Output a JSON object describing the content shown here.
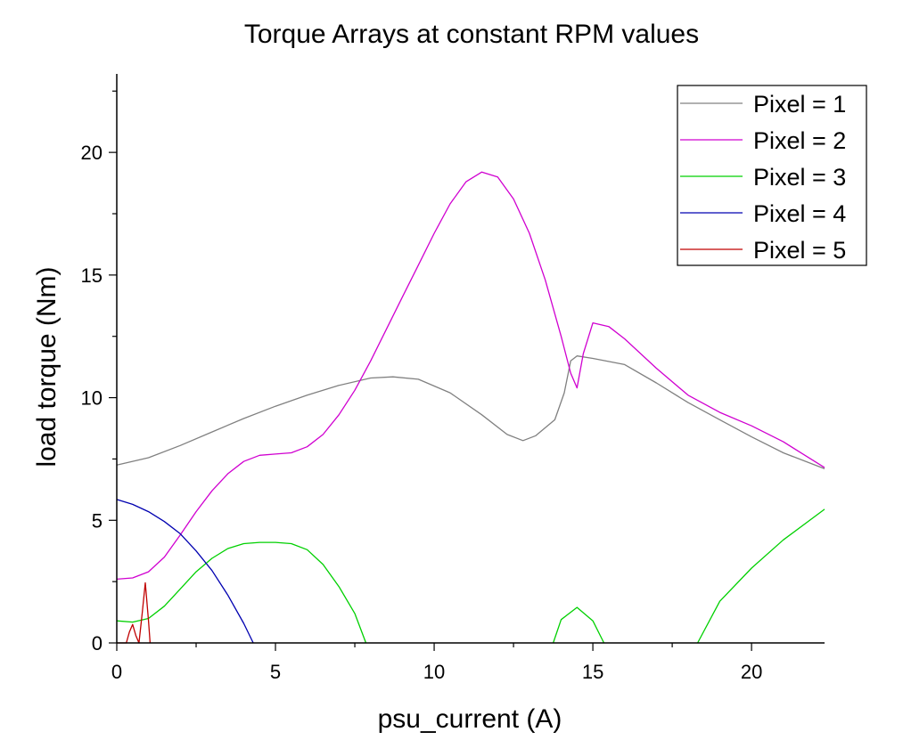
{
  "chart_data": {
    "type": "line",
    "title": "Torque Arrays at constant RPM values",
    "xlabel": "psu_current (A)",
    "ylabel": "load torque (Nm)",
    "xlim": [
      0,
      22.3
    ],
    "ylim": [
      0,
      23.2
    ],
    "xticks": [
      0,
      5,
      10,
      15,
      20
    ],
    "yticks": [
      0,
      5,
      10,
      15,
      20
    ],
    "grid": false,
    "legend_position": "top-right",
    "series": [
      {
        "name": "Pixel = 1",
        "color": "#808080",
        "x": [
          0,
          1,
          2,
          3,
          4,
          5,
          6,
          7,
          8,
          8.7,
          9.5,
          10.5,
          11.5,
          12.3,
          12.8,
          13.2,
          13.8,
          14.1,
          14.3,
          14.5,
          15,
          16,
          17,
          18,
          19,
          20,
          21,
          22.3
        ],
        "y": [
          7.25,
          7.55,
          8.05,
          8.6,
          9.15,
          9.65,
          10.1,
          10.5,
          10.8,
          10.85,
          10.75,
          10.2,
          9.3,
          8.5,
          8.25,
          8.45,
          9.1,
          10.2,
          11.5,
          11.7,
          11.6,
          11.35,
          10.6,
          9.8,
          9.1,
          8.4,
          7.75,
          7.1
        ]
      },
      {
        "name": "Pixel = 2",
        "color": "#d000d0",
        "x": [
          0,
          0.5,
          1,
          1.5,
          2,
          2.5,
          3,
          3.5,
          4,
          4.5,
          5,
          5.5,
          6,
          6.5,
          7,
          7.5,
          8,
          8.5,
          9,
          9.5,
          10,
          10.5,
          11,
          11.5,
          12,
          12.5,
          13,
          13.5,
          14,
          14.3,
          14.5,
          14.7,
          15,
          15.5,
          16,
          17,
          18,
          19,
          20,
          21,
          22.3
        ],
        "y": [
          2.6,
          2.65,
          2.9,
          3.5,
          4.4,
          5.35,
          6.2,
          6.9,
          7.4,
          7.65,
          7.7,
          7.75,
          8.0,
          8.5,
          9.3,
          10.3,
          11.5,
          12.8,
          14.1,
          15.4,
          16.7,
          17.9,
          18.8,
          19.2,
          19.0,
          18.1,
          16.7,
          14.8,
          12.5,
          11.0,
          10.4,
          11.8,
          13.05,
          12.9,
          12.4,
          11.2,
          10.1,
          9.4,
          8.85,
          8.2,
          7.15
        ]
      },
      {
        "name": "Pixel = 3",
        "color": "#00d000",
        "x": [
          0,
          0.5,
          1,
          1.5,
          2,
          2.5,
          3,
          3.5,
          4,
          4.5,
          5,
          5.5,
          6,
          6.5,
          7,
          7.5,
          7.85,
          null,
          13.75,
          14,
          14.5,
          15,
          15.35,
          null,
          18.3,
          19,
          20,
          21,
          22.3
        ],
        "y": [
          0.9,
          0.85,
          1.0,
          1.5,
          2.2,
          2.9,
          3.45,
          3.85,
          4.05,
          4.1,
          4.1,
          4.05,
          3.8,
          3.2,
          2.3,
          1.2,
          0,
          null,
          0,
          0.95,
          1.45,
          0.9,
          0,
          null,
          0,
          1.7,
          3.05,
          4.2,
          5.45
        ]
      },
      {
        "name": "Pixel = 4",
        "color": "#0000b0",
        "x": [
          0,
          0.5,
          1,
          1.5,
          2,
          2.5,
          3,
          3.5,
          4,
          4.3
        ],
        "y": [
          5.85,
          5.65,
          5.35,
          4.95,
          4.45,
          3.75,
          2.95,
          1.95,
          0.8,
          0
        ]
      },
      {
        "name": "Pixel = 5",
        "color": "#c00000",
        "x": [
          0,
          0.3,
          0.4,
          0.5,
          0.6,
          0.7,
          0.8,
          0.9,
          1.0,
          1.05
        ],
        "y": [
          0,
          0,
          0.45,
          0.75,
          0.3,
          0,
          1.2,
          2.45,
          0.9,
          0
        ]
      }
    ]
  }
}
